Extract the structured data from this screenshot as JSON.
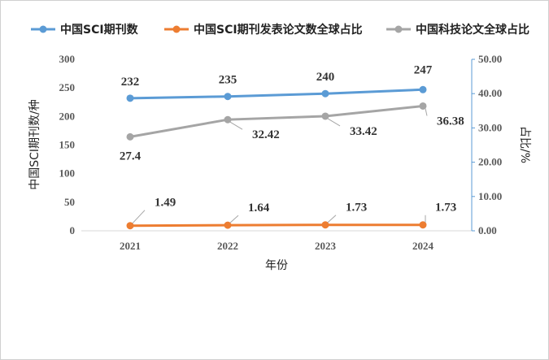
{
  "chart_data": {
    "type": "line",
    "categories": [
      "2021",
      "2022",
      "2023",
      "2024"
    ],
    "xlabel": "年份",
    "ylabel": "中国SCI期刊数/种",
    "y2label": "占比/%",
    "ylim": [
      0,
      300
    ],
    "yticks": [
      "0",
      "50",
      "100",
      "150",
      "200",
      "250",
      "300"
    ],
    "y2lim": [
      0,
      50
    ],
    "y2ticks": [
      "0.00",
      "10.00",
      "20.00",
      "30.00",
      "40.00",
      "50.00"
    ],
    "grid": false,
    "legend": "top",
    "series": [
      {
        "name": "中国SCI期刊数",
        "axis": "left",
        "color": "#5B9BD5",
        "values": [
          232,
          235,
          240,
          247
        ],
        "labels": [
          "232",
          "235",
          "240",
          "247"
        ]
      },
      {
        "name": "中国SCI期刊发表论文数全球占比",
        "axis": "right",
        "color": "#ED7D31",
        "values": [
          1.49,
          1.64,
          1.73,
          1.73
        ],
        "labels": [
          "1.49",
          "1.64",
          "1.73",
          "1.73"
        ]
      },
      {
        "name": "中国科技论文全球占比",
        "axis": "right",
        "color": "#A5A5A5",
        "values": [
          27.4,
          32.42,
          33.42,
          36.38
        ],
        "labels": [
          "27.4",
          "32.42",
          "33.42",
          "36.38"
        ]
      }
    ]
  }
}
